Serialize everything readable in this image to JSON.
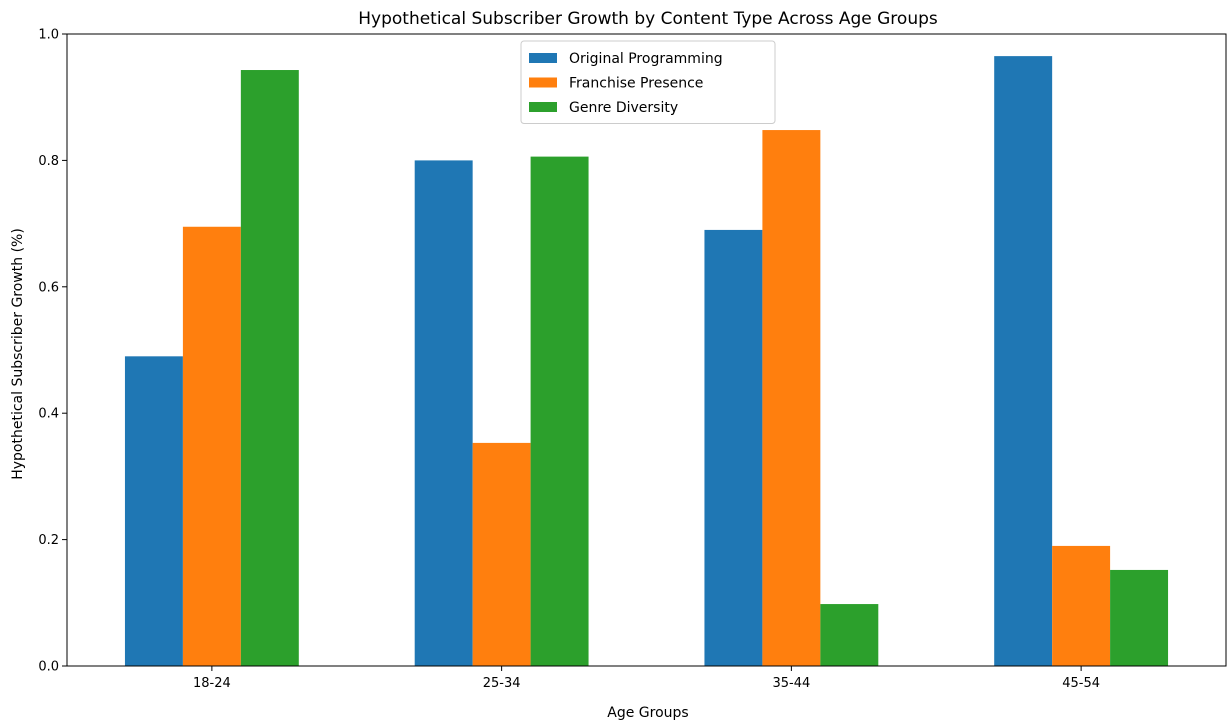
{
  "chart_data": {
    "type": "bar",
    "title": "Hypothetical Subscriber Growth by Content Type Across Age Groups",
    "xlabel": "Age Groups",
    "ylabel": "Hypothetical Subscriber Growth (%)",
    "categories": [
      "18-24",
      "25-34",
      "35-44",
      "45-54"
    ],
    "series": [
      {
        "name": "Original Programming",
        "color": "#1f77b4",
        "values": [
          0.49,
          0.8,
          0.69,
          0.965
        ]
      },
      {
        "name": "Franchise Presence",
        "color": "#ff7f0e",
        "values": [
          0.695,
          0.353,
          0.848,
          0.19
        ]
      },
      {
        "name": "Genre Diversity",
        "color": "#2ca02c",
        "values": [
          0.943,
          0.806,
          0.098,
          0.152
        ]
      }
    ],
    "ylim": [
      0,
      1.0
    ],
    "yticks": [
      "0.0",
      "0.2",
      "0.4",
      "0.6",
      "0.8",
      "1.0"
    ],
    "grid": false,
    "legend": "top-center"
  }
}
